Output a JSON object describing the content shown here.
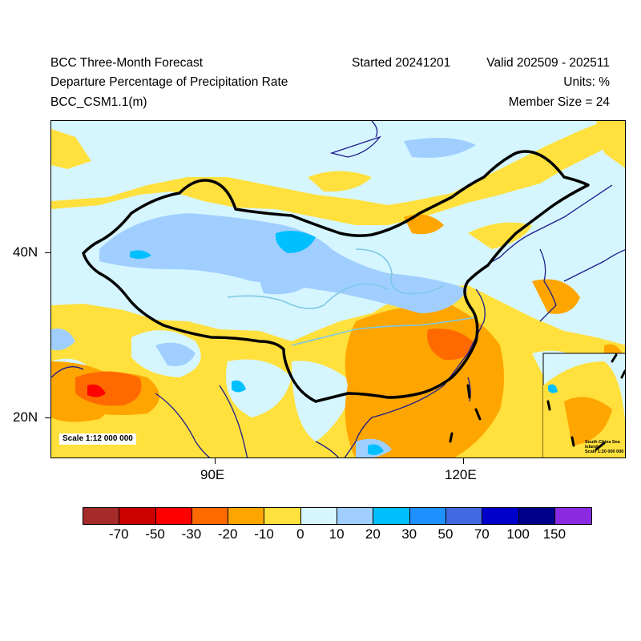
{
  "header": {
    "title": "BCC Three-Month Forecast",
    "subtitle": "Departure Percentage of Precipitation Rate",
    "model": "BCC_CSM1.1(m)",
    "started": "Started 20241201",
    "valid": "Valid 202509 - 202511",
    "units": "Units: %",
    "member_size": "Member Size = 24"
  },
  "map": {
    "lat_ticks": [
      "40N",
      "20N"
    ],
    "lon_ticks": [
      "90E",
      "120E"
    ],
    "scale_label": "Scale 1:12 000 000",
    "inset": {
      "title": "South China Sea Islands",
      "scale": "Scale 1:20 000 000"
    }
  },
  "colorbar": {
    "colors": [
      "#a52a2a",
      "#cd0000",
      "#ff0000",
      "#ff6a00",
      "#ffa500",
      "#ffe03d",
      "#d6f6ff",
      "#a0cfff",
      "#00bfff",
      "#1e90ff",
      "#4169e1",
      "#0000cd",
      "#00008b",
      "#8a2be2"
    ],
    "labels": [
      "-70",
      "-50",
      "-30",
      "-20",
      "-10",
      "0",
      "10",
      "20",
      "30",
      "50",
      "70",
      "100",
      "150"
    ]
  }
}
